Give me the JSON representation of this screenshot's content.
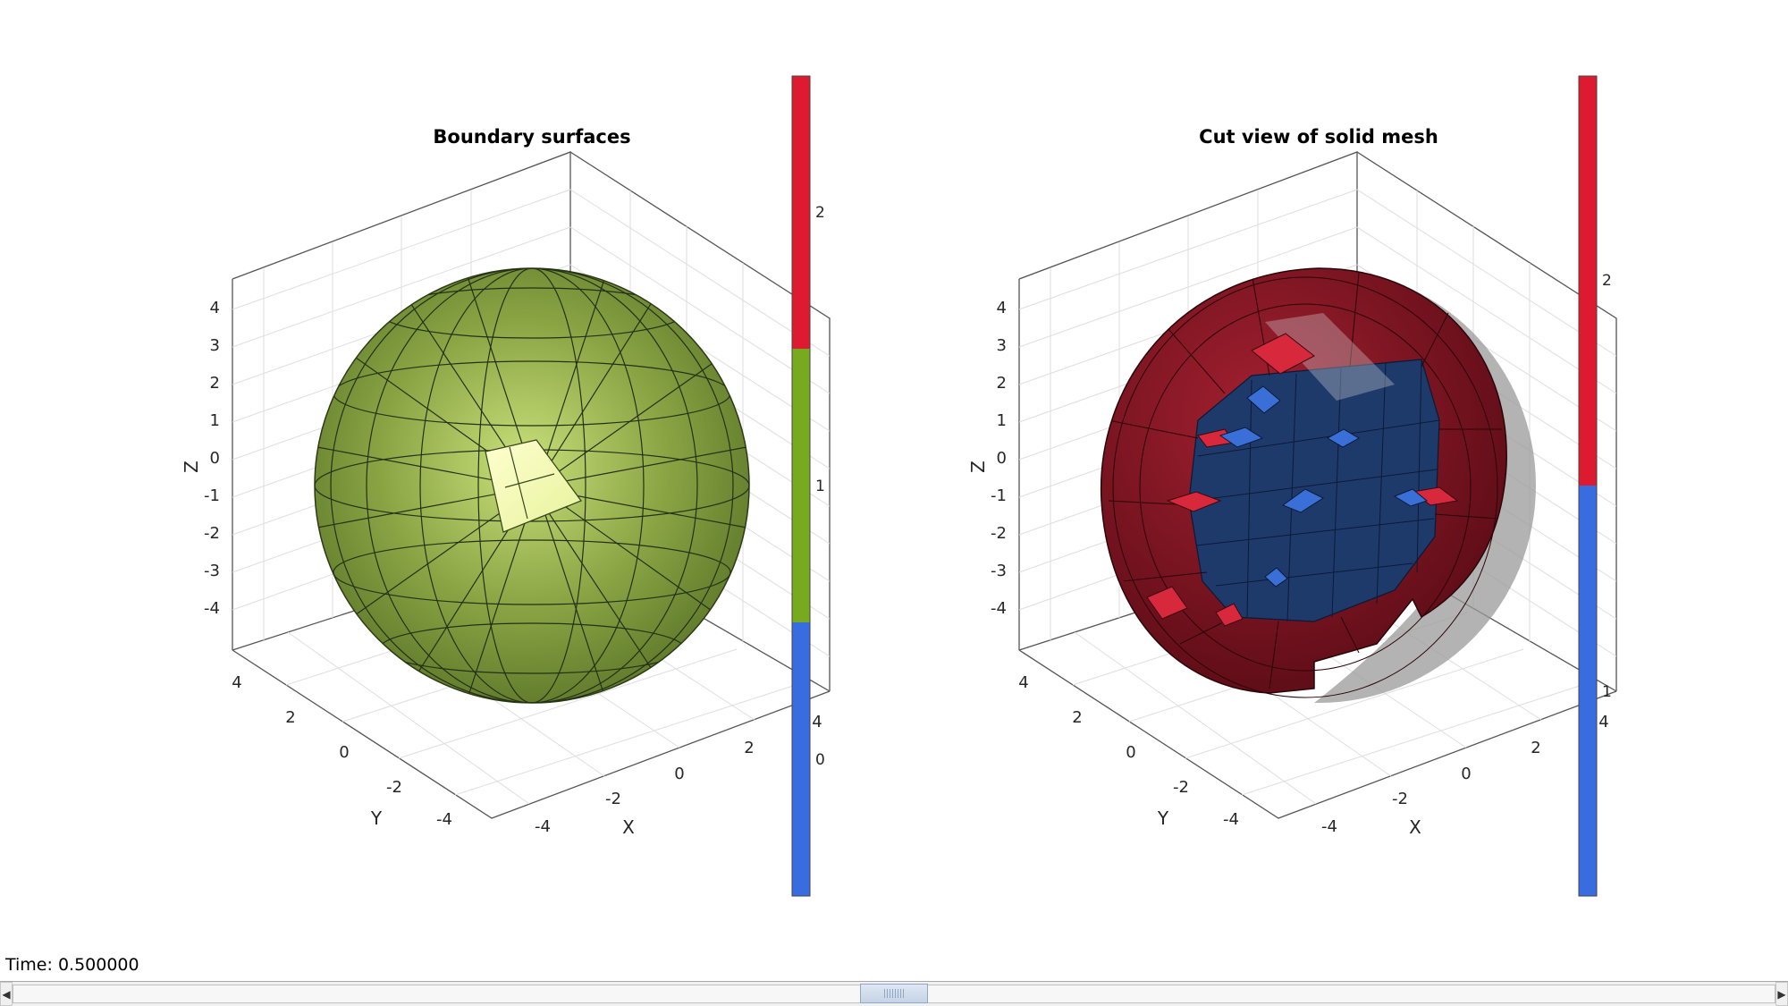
{
  "plots": [
    {
      "title": "Boundary surfaces",
      "xlabel": "X",
      "ylabel": "Y",
      "zlabel": "Z",
      "z_ticks": [
        "4",
        "3",
        "2",
        "1",
        "0",
        "-1",
        "-2",
        "-3",
        "-4"
      ],
      "y_ticks": [
        "4",
        "2",
        "0",
        "-2",
        "-4"
      ],
      "x_ticks": [
        "-4",
        "-2",
        "0",
        "2",
        "4"
      ],
      "colorbar": {
        "segments": [
          "#dd1a2f",
          "#77aa1e",
          "#386de0"
        ],
        "ticks": [
          "2",
          "1",
          "0"
        ]
      }
    },
    {
      "title": "Cut view of solid mesh",
      "xlabel": "X",
      "ylabel": "Y",
      "zlabel": "Z",
      "z_ticks": [
        "4",
        "3",
        "2",
        "1",
        "0",
        "-1",
        "-2",
        "-3",
        "-4"
      ],
      "y_ticks": [
        "4",
        "2",
        "0",
        "-2",
        "-4"
      ],
      "x_ticks": [
        "-4",
        "-2",
        "0",
        "2",
        "4"
      ],
      "colorbar": {
        "segments": [
          "#dd1a2f",
          "#386de0"
        ],
        "ticks": [
          "2",
          "1"
        ]
      }
    }
  ],
  "status": {
    "text": "Time: 0.500000"
  },
  "scrollbar": {
    "left_arrow": "◀",
    "right_arrow": "▶",
    "thumb_position": 0.5
  }
}
